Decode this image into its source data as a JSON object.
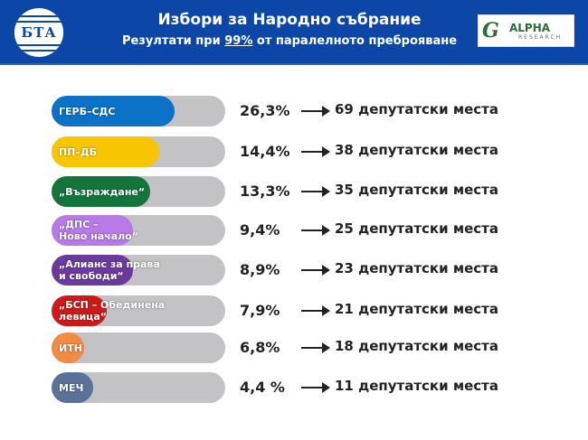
{
  "header": {
    "title": "Избори за Народно събрание",
    "subtitle_pre": "Резултати при ",
    "subtitle_pct": "99%",
    "subtitle_post": " от паралелното преброяване",
    "logo_left": "БТА",
    "logo_right_main": "ALPHA",
    "logo_right_sub": "RESEARCH"
  },
  "colors": {
    "header": "#0c47a8",
    "track": "#c3c3c5"
  },
  "parties": [
    {
      "name": "ГЕРБ–СДС",
      "pct": "26,3%",
      "seats": "69 депутатски места",
      "color": "#0b72c7",
      "fill": 71
    },
    {
      "name": "ПП–ДБ",
      "pct": "14,4%",
      "seats": "38 депутатски места",
      "color": "#f7c600",
      "fill": 62
    },
    {
      "name": "„Възраждане“",
      "pct": "13,3%",
      "seats": "35 депутатски места",
      "color": "#13753c",
      "fill": 57
    },
    {
      "name": "„ДПС –\nНово начало“",
      "pct": "9,4%",
      "seats": "25 депутатски места",
      "color": "#b77ae6",
      "fill": 47
    },
    {
      "name": "„Алианс за права\nи свободи“",
      "pct": "8,9%",
      "seats": "23 депутатски места",
      "color": "#6c3a9c",
      "fill": 47
    },
    {
      "name": "„БСП – Обединена\nлевица“",
      "pct": "7,9%",
      "seats": "21 депутатски места",
      "color": "#cc1a1a",
      "fill": 32
    },
    {
      "name": "ИТН",
      "pct": "6,8%",
      "seats": "18 депутатски места",
      "color": "#f28b46",
      "fill": 19
    },
    {
      "name": "МЕЧ",
      "pct": "4,4 %",
      "seats": "11 депутатски места",
      "color": "#5b7298",
      "fill": 24
    }
  ]
}
